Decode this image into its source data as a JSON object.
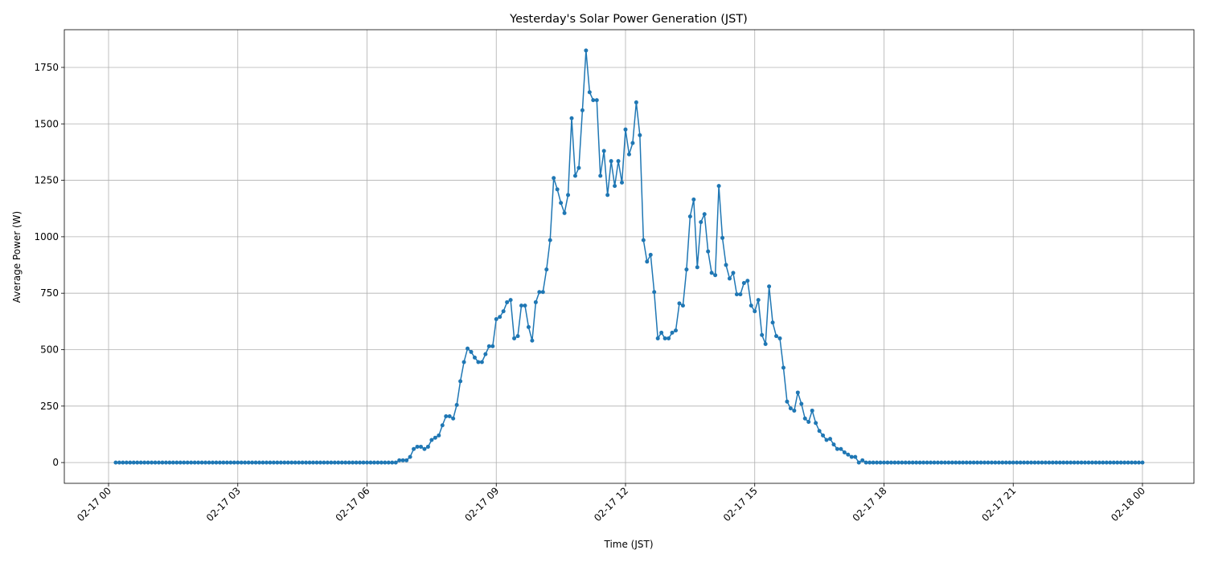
{
  "chart_data": {
    "type": "line",
    "title": "Yesterday's Solar Power Generation (JST)",
    "x_label": "Time (JST)",
    "y_label": "Average Power (W)",
    "color": "#1f77b4",
    "grid": true,
    "xlim": [
      -61.6,
      1511.7
    ],
    "ylim": [
      -92,
      1917
    ],
    "xticks": [
      {
        "value": 0,
        "label": "02-17 00"
      },
      {
        "value": 180,
        "label": "02-17 03"
      },
      {
        "value": 360,
        "label": "02-17 06"
      },
      {
        "value": 540,
        "label": "02-17 09"
      },
      {
        "value": 720,
        "label": "02-17 12"
      },
      {
        "value": 900,
        "label": "02-17 15"
      },
      {
        "value": 1080,
        "label": "02-17 18"
      },
      {
        "value": 1260,
        "label": "02-17 21"
      },
      {
        "value": 1440,
        "label": "02-18 00"
      }
    ],
    "yticks": [
      0,
      250,
      500,
      750,
      1000,
      1250,
      1500,
      1750
    ],
    "x": [
      10,
      15,
      20,
      25,
      30,
      35,
      40,
      45,
      50,
      55,
      60,
      65,
      70,
      75,
      80,
      85,
      90,
      95,
      100,
      105,
      110,
      115,
      120,
      125,
      130,
      135,
      140,
      145,
      150,
      155,
      160,
      165,
      170,
      175,
      180,
      185,
      190,
      195,
      200,
      205,
      210,
      215,
      220,
      225,
      230,
      235,
      240,
      245,
      250,
      255,
      260,
      265,
      270,
      275,
      280,
      285,
      290,
      295,
      300,
      305,
      310,
      315,
      320,
      325,
      330,
      335,
      340,
      345,
      350,
      355,
      360,
      365,
      370,
      375,
      380,
      385,
      390,
      395,
      400,
      405,
      410,
      415,
      420,
      425,
      430,
      435,
      440,
      445,
      450,
      455,
      460,
      465,
      470,
      475,
      480,
      485,
      490,
      495,
      500,
      505,
      510,
      515,
      520,
      525,
      530,
      535,
      540,
      545,
      550,
      555,
      560,
      565,
      570,
      575,
      580,
      585,
      590,
      595,
      600,
      605,
      610,
      615,
      620,
      625,
      630,
      635,
      640,
      645,
      650,
      655,
      660,
      665,
      670,
      675,
      680,
      685,
      690,
      695,
      700,
      705,
      710,
      715,
      720,
      725,
      730,
      735,
      740,
      745,
      750,
      755,
      760,
      765,
      770,
      775,
      780,
      785,
      790,
      795,
      800,
      805,
      810,
      815,
      820,
      825,
      830,
      835,
      840,
      845,
      850,
      855,
      860,
      865,
      870,
      875,
      880,
      885,
      890,
      895,
      900,
      905,
      910,
      915,
      920,
      925,
      930,
      935,
      940,
      945,
      950,
      955,
      960,
      965,
      970,
      975,
      980,
      985,
      990,
      995,
      1000,
      1005,
      1010,
      1015,
      1020,
      1025,
      1030,
      1035,
      1040,
      1045,
      1050,
      1055,
      1060,
      1065,
      1070,
      1075,
      1080,
      1085,
      1090,
      1095,
      1100,
      1105,
      1110,
      1115,
      1120,
      1125,
      1130,
      1135,
      1140,
      1145,
      1150,
      1155,
      1160,
      1165,
      1170,
      1175,
      1180,
      1185,
      1190,
      1195,
      1200,
      1205,
      1210,
      1215,
      1220,
      1225,
      1230,
      1235,
      1240,
      1245,
      1250,
      1255,
      1260,
      1265,
      1270,
      1275,
      1280,
      1285,
      1290,
      1295,
      1300,
      1305,
      1310,
      1315,
      1320,
      1325,
      1330,
      1335,
      1340,
      1345,
      1350,
      1355,
      1360,
      1365,
      1370,
      1375,
      1380,
      1385,
      1390,
      1395,
      1400,
      1405,
      1410,
      1415,
      1420,
      1425,
      1430,
      1435,
      1440
    ],
    "values": [
      0,
      0,
      0,
      0,
      0,
      0,
      0,
      0,
      0,
      0,
      0,
      0,
      0,
      0,
      0,
      0,
      0,
      0,
      0,
      0,
      0,
      0,
      0,
      0,
      0,
      0,
      0,
      0,
      0,
      0,
      0,
      0,
      0,
      0,
      0,
      0,
      0,
      0,
      0,
      0,
      0,
      0,
      0,
      0,
      0,
      0,
      0,
      0,
      0,
      0,
      0,
      0,
      0,
      0,
      0,
      0,
      0,
      0,
      0,
      0,
      0,
      0,
      0,
      0,
      0,
      0,
      0,
      0,
      0,
      0,
      0,
      0,
      0,
      0,
      0,
      0,
      0,
      0,
      0,
      10,
      10,
      10,
      25,
      60,
      70,
      70,
      60,
      70,
      100,
      110,
      120,
      165,
      205,
      205,
      195,
      255,
      360,
      445,
      505,
      490,
      465,
      445,
      445,
      480,
      515,
      515,
      635,
      645,
      670,
      710,
      720,
      550,
      560,
      695,
      695,
      600,
      540,
      710,
      755,
      755,
      855,
      985,
      1260,
      1210,
      1150,
      1105,
      1185,
      1525,
      1270,
      1305,
      1560,
      1825,
      1640,
      1605,
      1605,
      1270,
      1380,
      1185,
      1335,
      1225,
      1335,
      1240,
      1475,
      1365,
      1415,
      1595,
      1450,
      985,
      890,
      920,
      755,
      550,
      575,
      550,
      550,
      575,
      585,
      705,
      695,
      855,
      1090,
      1165,
      865,
      1065,
      1100,
      935,
      840,
      830,
      1225,
      995,
      875,
      815,
      840,
      745,
      745,
      795,
      805,
      695,
      670,
      720,
      565,
      525,
      780,
      620,
      560,
      550,
      420,
      270,
      240,
      230,
      310,
      260,
      195,
      180,
      230,
      175,
      140,
      120,
      100,
      105,
      80,
      60,
      60,
      45,
      35,
      25,
      25,
      0,
      10,
      0,
      0,
      0,
      0,
      0,
      0,
      0,
      0,
      0,
      0,
      0,
      0,
      0,
      0,
      0,
      0,
      0,
      0,
      0,
      0,
      0,
      0,
      0,
      0,
      0,
      0,
      0,
      0,
      0,
      0,
      0,
      0,
      0,
      0,
      0,
      0,
      0,
      0,
      0,
      0,
      0,
      0,
      0,
      0,
      0,
      0,
      0,
      0,
      0,
      0,
      0,
      0,
      0,
      0,
      0,
      0,
      0,
      0,
      0,
      0,
      0,
      0,
      0,
      0,
      0,
      0,
      0,
      0,
      0,
      0,
      0,
      0,
      0,
      0,
      0,
      0,
      0,
      0
    ]
  }
}
